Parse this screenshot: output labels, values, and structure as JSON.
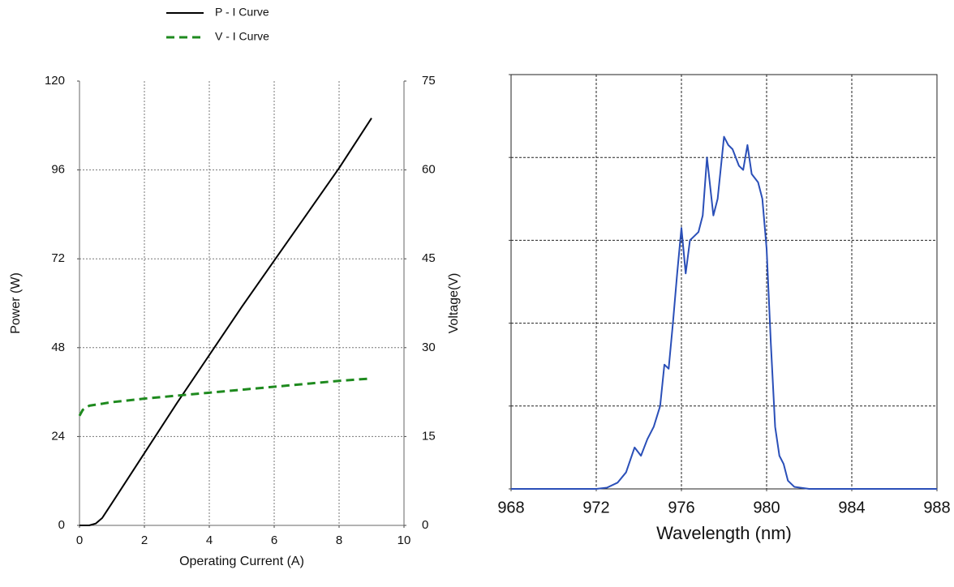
{
  "chart_data": [
    {
      "type": "line",
      "x_label": "Operating Current (A)",
      "y_label": "Power (W)",
      "y2_label": "Voltage(V)",
      "xlim": [
        0,
        10
      ],
      "xticks": [
        0,
        2,
        4,
        6,
        8,
        10
      ],
      "ylim": [
        0,
        120
      ],
      "yticks": [
        0,
        24,
        48,
        72,
        96,
        120
      ],
      "y2lim": [
        0,
        75
      ],
      "y2ticks": [
        0,
        15,
        30,
        45,
        60,
        75
      ],
      "grid": true,
      "legend": "top-left",
      "series": [
        {
          "name": "P - I Curve",
          "color": "#000000",
          "line_style": "solid",
          "x": [
            0,
            0.3,
            0.5,
            0.7,
            1,
            2,
            3,
            4,
            5,
            6,
            7,
            8,
            9
          ],
          "values": [
            0,
            0,
            0.5,
            2,
            6,
            19.5,
            33,
            46,
            59,
            71.5,
            84,
            96.5,
            110
          ]
        },
        {
          "name": "V - I Curve",
          "color": "#1e8a1e",
          "line_style": "dashed",
          "axis": "y2",
          "x": [
            0,
            0.1,
            0.3,
            1,
            2,
            3,
            4,
            5,
            6,
            7,
            8,
            9
          ],
          "values": [
            18.5,
            19.5,
            20.2,
            20.8,
            21.4,
            21.9,
            22.4,
            22.9,
            23.4,
            23.9,
            24.4,
            24.8
          ]
        }
      ]
    },
    {
      "type": "line",
      "x_label": "Wavelength (nm)",
      "xlim": [
        968,
        988
      ],
      "xticks": [
        968,
        972,
        976,
        980,
        984,
        988
      ],
      "ylim": [
        0,
        100
      ],
      "yticks": [
        0,
        20,
        40,
        60,
        80,
        100
      ],
      "ytick_labels": false,
      "grid": true,
      "series": [
        {
          "color": "#2a4fb8",
          "line_style": "solid",
          "x": [
            968,
            972,
            972.5,
            973,
            973.4,
            973.8,
            974.1,
            974.4,
            974.7,
            975,
            975.2,
            975.4,
            975.6,
            975.8,
            976,
            976.2,
            976.4,
            976.6,
            976.8,
            977,
            977.2,
            977.5,
            977.7,
            978,
            978.2,
            978.4,
            978.7,
            978.9,
            979.1,
            979.3,
            979.6,
            979.8,
            980,
            980.2,
            980.4,
            980.6,
            980.8,
            981,
            981.3,
            982,
            988
          ],
          "values": [
            0,
            0,
            0.3,
            1.5,
            4,
            10,
            8,
            12,
            15,
            20,
            30,
            29,
            40,
            52,
            63,
            52,
            60,
            61,
            62,
            66,
            80,
            66,
            70,
            85,
            83,
            82,
            78,
            77,
            83,
            76,
            74,
            70,
            58,
            35,
            15,
            8,
            6,
            2,
            0.5,
            0,
            0
          ]
        }
      ]
    }
  ]
}
